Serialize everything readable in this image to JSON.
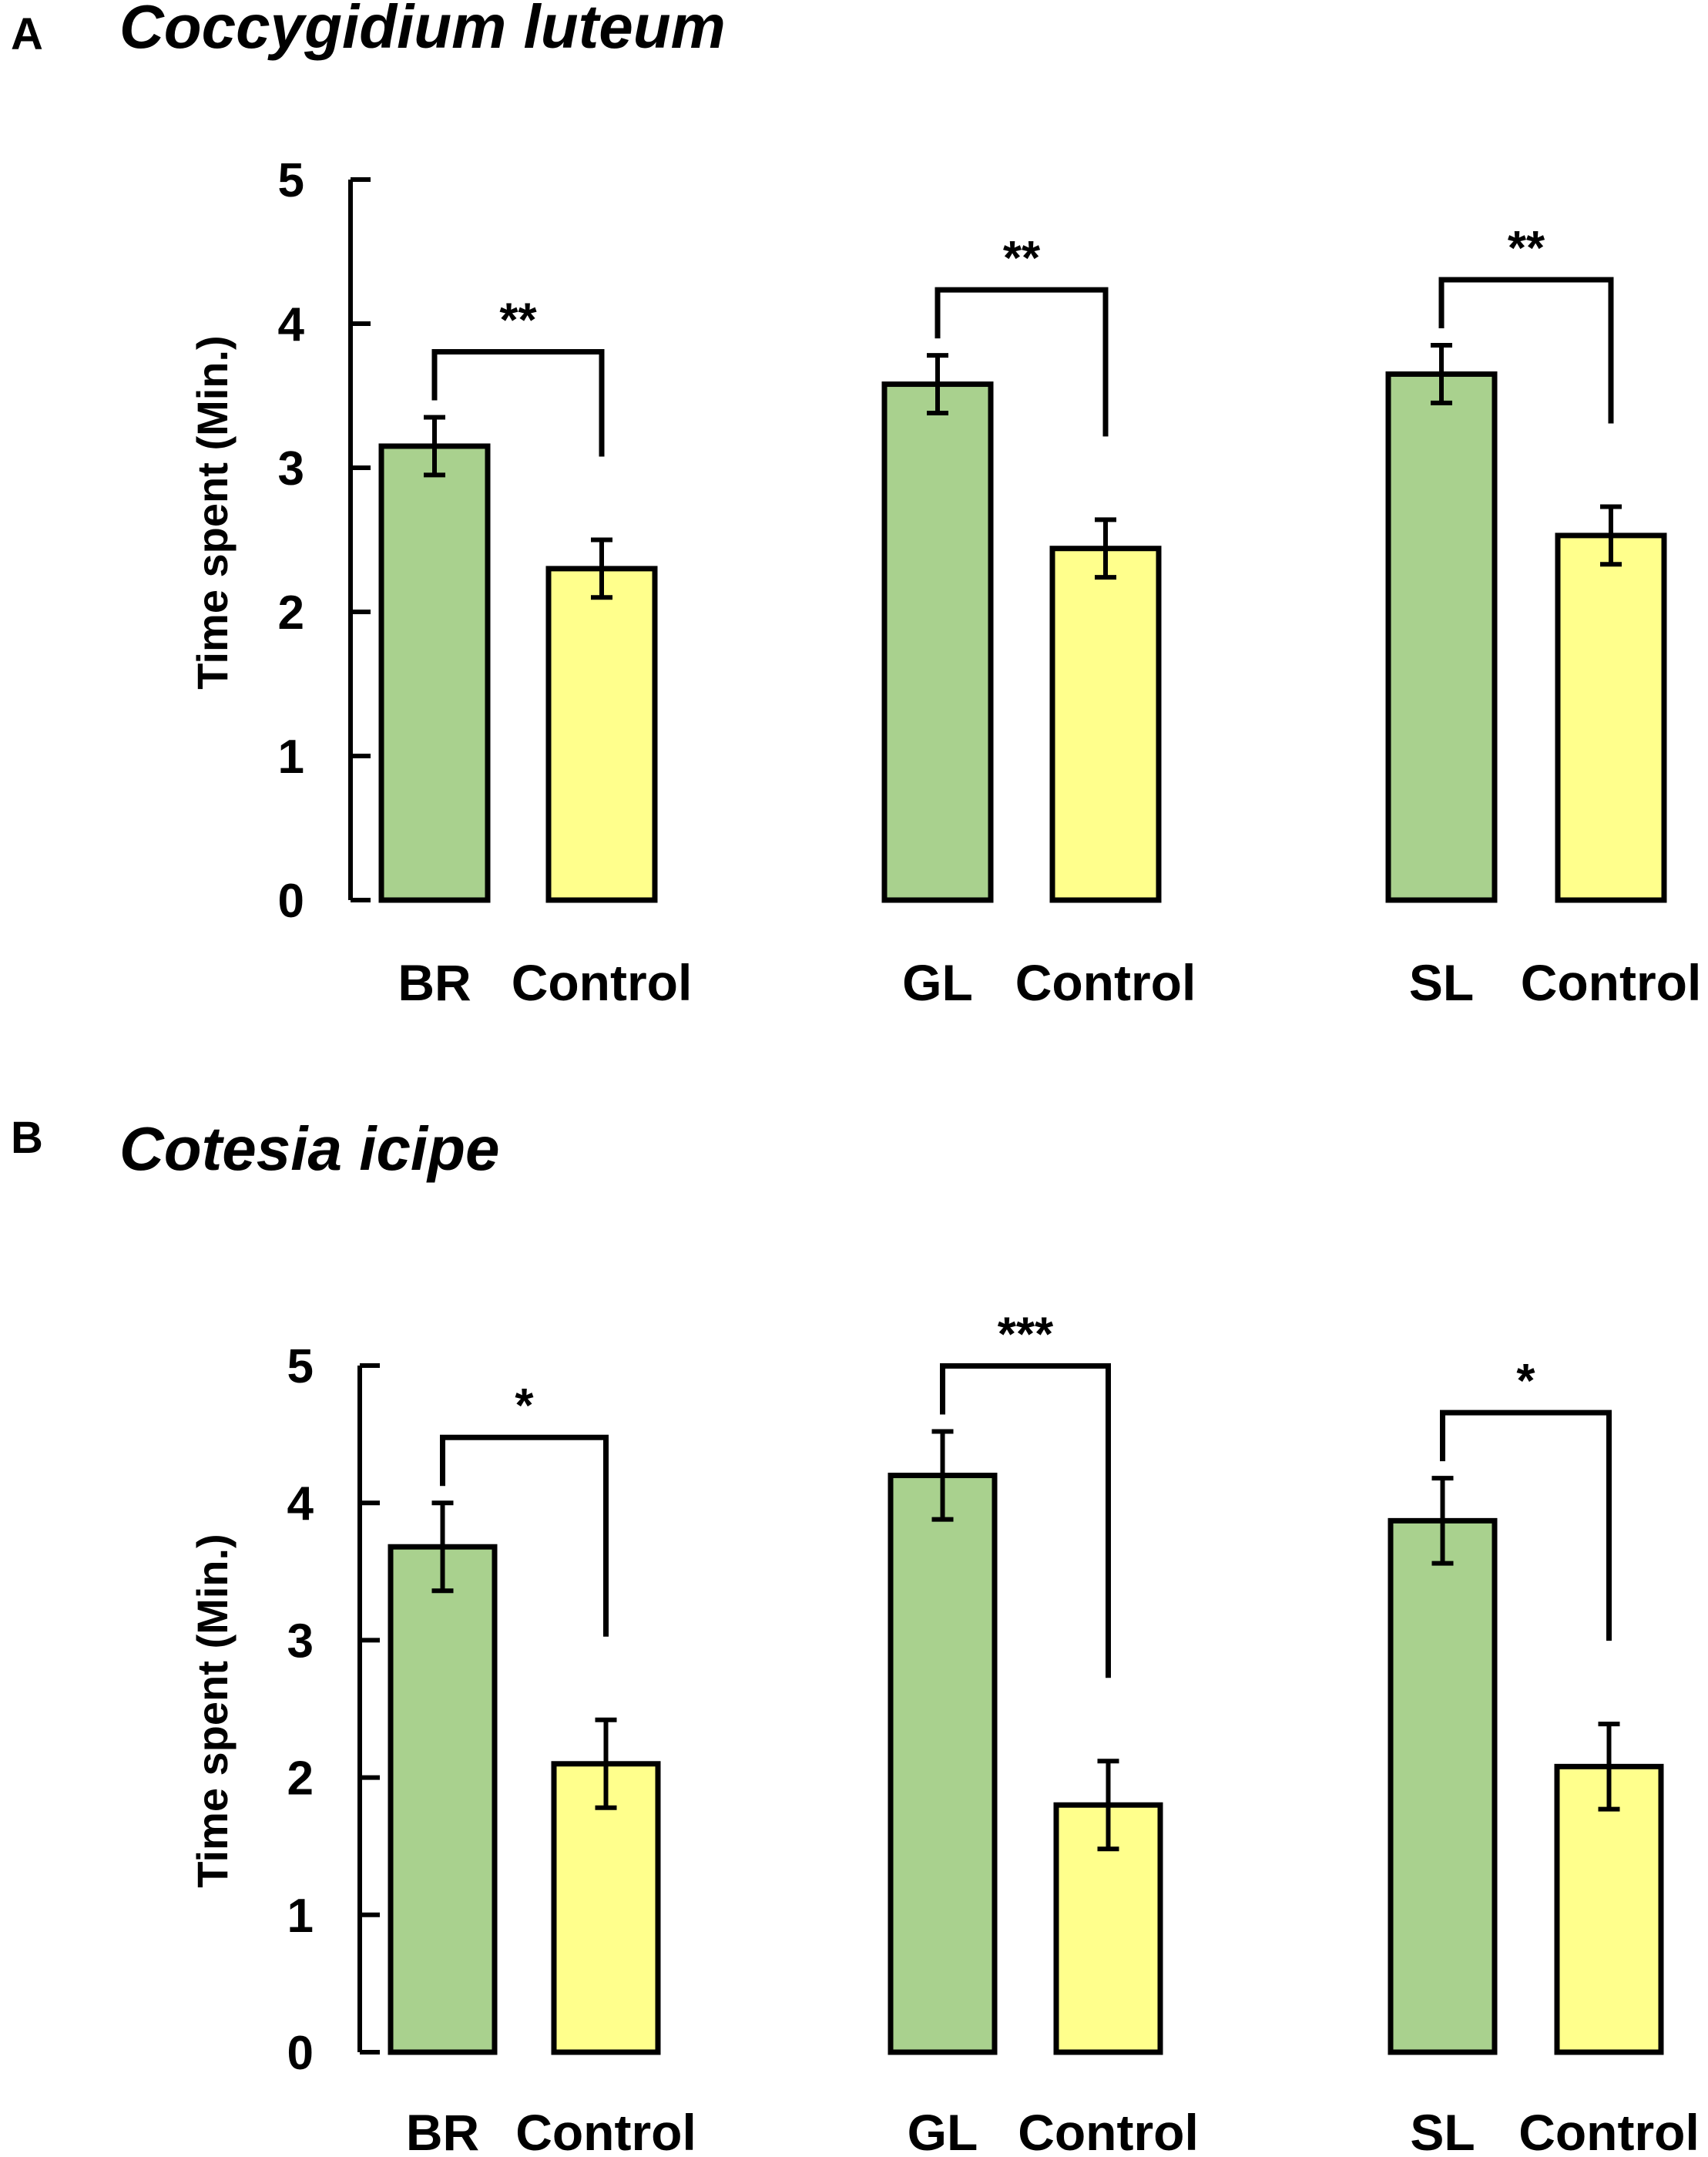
{
  "chart_data": [
    {
      "panel": "A",
      "type": "bar",
      "title": "Coccygidium luteum",
      "ylabel": "Time spent (Min.)",
      "ylim": [
        0,
        5
      ],
      "yticks": [
        0,
        1,
        2,
        3,
        4,
        5
      ],
      "grid": false,
      "groups": [
        {
          "bars": [
            {
              "label": "BR",
              "value": 3.15,
              "error": 0.2,
              "kind": "treatment"
            },
            {
              "label": "Control",
              "value": 2.3,
              "error": 0.2,
              "kind": "control"
            }
          ],
          "significance": "**"
        },
        {
          "bars": [
            {
              "label": "GL",
              "value": 3.58,
              "error": 0.2,
              "kind": "treatment"
            },
            {
              "label": "Control",
              "value": 2.44,
              "error": 0.2,
              "kind": "control"
            }
          ],
          "significance": "**"
        },
        {
          "bars": [
            {
              "label": "SL",
              "value": 3.65,
              "error": 0.2,
              "kind": "treatment"
            },
            {
              "label": "Control",
              "value": 2.53,
              "error": 0.2,
              "kind": "control"
            }
          ],
          "significance": "**"
        }
      ]
    },
    {
      "panel": "B",
      "type": "bar",
      "title": "Cotesia icipe",
      "ylabel": "Time spent (Min.)",
      "ylim": [
        0,
        5
      ],
      "yticks": [
        0,
        1,
        2,
        3,
        4,
        5
      ],
      "grid": false,
      "groups": [
        {
          "bars": [
            {
              "label": "BR",
              "value": 3.68,
              "error": 0.32,
              "kind": "treatment"
            },
            {
              "label": "Control",
              "value": 2.1,
              "error": 0.32,
              "kind": "control"
            }
          ],
          "significance": "*"
        },
        {
          "bars": [
            {
              "label": "GL",
              "value": 4.2,
              "error": 0.32,
              "kind": "treatment"
            },
            {
              "label": "Control",
              "value": 1.8,
              "error": 0.32,
              "kind": "control"
            }
          ],
          "significance": "***"
        },
        {
          "bars": [
            {
              "label": "SL",
              "value": 3.87,
              "error": 0.31,
              "kind": "treatment"
            },
            {
              "label": "Control",
              "value": 2.08,
              "error": 0.31,
              "kind": "control"
            }
          ],
          "significance": "*"
        }
      ]
    }
  ],
  "colors": {
    "treatment": "#a9d18e",
    "control": "#ffff8c",
    "stroke": "#000000"
  }
}
